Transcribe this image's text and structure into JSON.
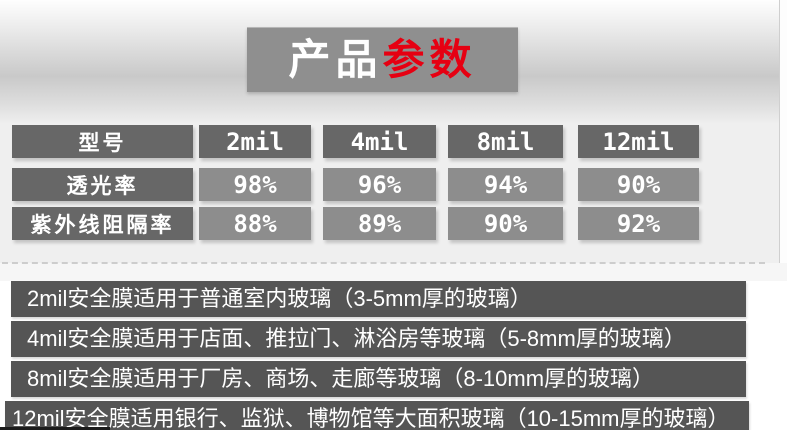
{
  "page": {
    "title": {
      "white_part": "产品",
      "red_part": "参数"
    }
  },
  "spec_table": {
    "model_header": "型号",
    "model_columns": [
      "2mil",
      "4mil",
      "8mil",
      "12mil"
    ],
    "rows": [
      {
        "label": "透光率",
        "values": [
          "98%",
          "96%",
          "94%",
          "90%"
        ]
      },
      {
        "label": "紫外线阻隔率",
        "values": [
          "88%",
          "89%",
          "90%",
          "92%"
        ]
      }
    ]
  },
  "usage_notes": [
    "2mil安全膜适用于普通室内玻璃（3-5mm厚的玻璃）",
    "4mil安全膜适用于店面、推拉门、淋浴房等玻璃（5-8mm厚的玻璃）",
    "8mil安全膜适用于厂房、商场、走廊等玻璃（8-10mm厚的玻璃）",
    "12mil安全膜适用银行、监狱、博物馆等大面积玻璃（10-15mm厚的玻璃）"
  ],
  "colors": {
    "accent_red": "#e60012",
    "dark_cell_gray": "#676767",
    "light_cell_gray": "#8d8d8d",
    "note_bar_gray": "#555555",
    "title_plate_gray": "#8f8f8f"
  },
  "chart_data": {
    "type": "table",
    "title": "产品参数",
    "columns": [
      "型号",
      "2mil",
      "4mil",
      "8mil",
      "12mil"
    ],
    "rows": [
      [
        "透光率",
        "98%",
        "96%",
        "94%",
        "90%"
      ],
      [
        "紫外线阻隔率",
        "88%",
        "89%",
        "90%",
        "92%"
      ]
    ]
  }
}
